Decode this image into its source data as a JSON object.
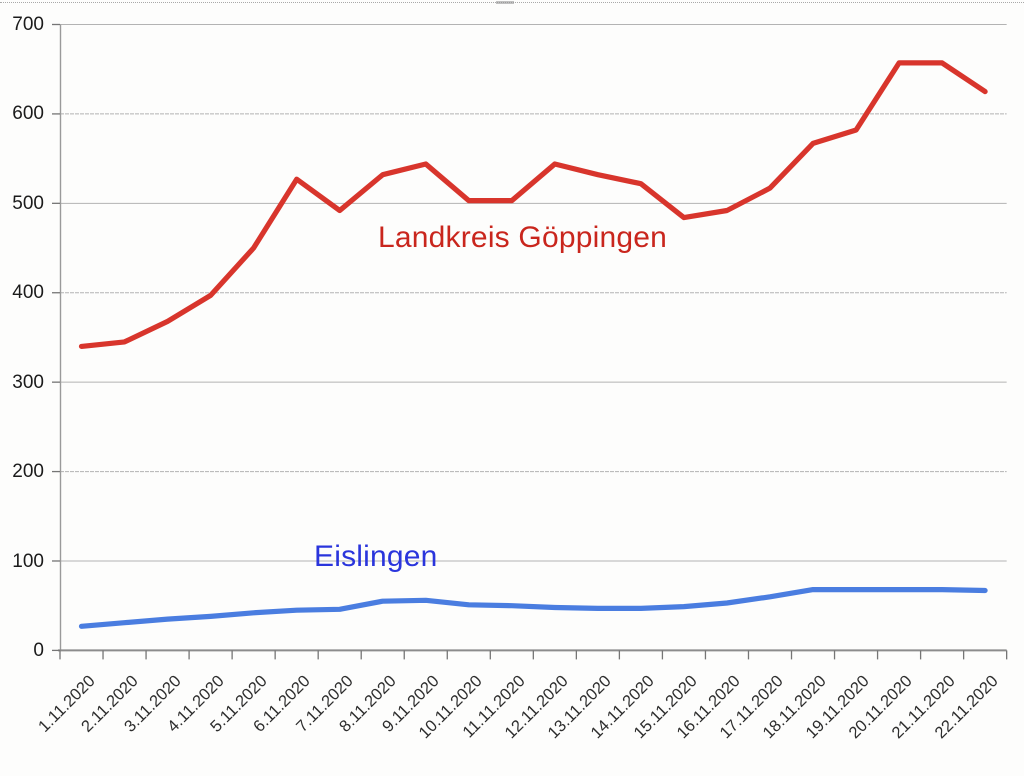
{
  "chart_data": {
    "type": "line",
    "title": "",
    "categories": [
      "1.11.2020",
      "2.11.2020",
      "3.11.2020",
      "4.11.2020",
      "5.11.2020",
      "6.11.2020",
      "7.11.2020",
      "8.11.2020",
      "9.11.2020",
      "10.11.2020",
      "11.11.2020",
      "12.11.2020",
      "13.11.2020",
      "14.11.2020",
      "15.11.2020",
      "16.11.2020",
      "17.11.2020",
      "18.11.2020",
      "19.11.2020",
      "20.11.2020",
      "21.11.2020",
      "22.11.2020"
    ],
    "series": [
      {
        "name": "Landkreis Göppingen",
        "line_color": "#d8352c",
        "label_color": "#c9261d",
        "values": [
          340,
          345,
          368,
          397,
          450,
          527,
          492,
          532,
          544,
          503,
          503,
          544,
          532,
          522,
          484,
          492,
          517,
          567,
          582,
          657,
          657,
          625
        ]
      },
      {
        "name": "Eislingen",
        "line_color": "#4a7de0",
        "label_color": "#2a35dc",
        "values": [
          27,
          31,
          35,
          38,
          42,
          45,
          46,
          55,
          56,
          51,
          50,
          48,
          47,
          47,
          49,
          53,
          60,
          68,
          68,
          68,
          68,
          67
        ]
      }
    ],
    "ylim": [
      0,
      700
    ],
    "yticks": [
      0,
      100,
      200,
      300,
      400,
      500,
      600,
      700
    ],
    "xlabel": "",
    "ylabel": "",
    "grid": "horizontal",
    "legend_position": "inline-labels-on-plot"
  },
  "style_colors": {
    "gridline": "#b3b3b3",
    "y_axis_line": "#9a9a9a",
    "x_axis_line": "#8c8c8c",
    "tick_mark": "#757575",
    "y_tick_label": "#1b1b1b",
    "x_tick_label": "#2d2d2d",
    "background": "#fdfdfc"
  }
}
